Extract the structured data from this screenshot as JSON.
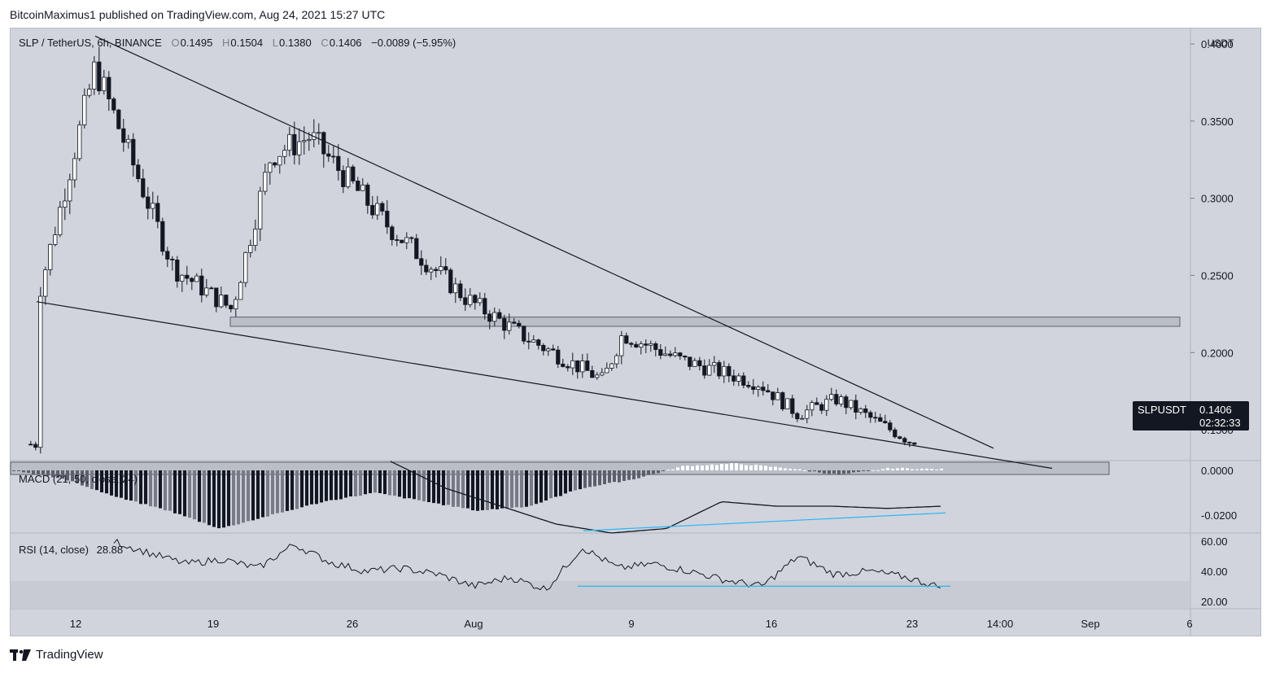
{
  "header": {
    "publisher_line": "BitcoinMaximus1 published on TradingView.com, Aug 24, 2021 15:27 UTC"
  },
  "footer": {
    "brand": "TradingView"
  },
  "legend": {
    "symbol": "SLP / TetherUS, 6h, BINANCE",
    "o_label": "O",
    "o_value": "0.1495",
    "h_label": "H",
    "h_value": "0.1504",
    "l_label": "L",
    "l_value": "0.1380",
    "c_label": "C",
    "c_value": "0.1406",
    "change": "−0.0089 (−5.95%)"
  },
  "price_tag": {
    "symbol": "SLPUSDT",
    "price": "0.1406",
    "countdown": "02:32:33"
  },
  "macd_label": "MACD (21, 50, close, 24)",
  "rsi_label": "RSI (14, close)",
  "rsi_value": "28.88",
  "colors": {
    "panel_bg": "#d1d4dc",
    "candle": "#131722",
    "trendline_blue": "#29b6f6"
  },
  "chart_data": [
    {
      "type": "candlestick",
      "title": "SLP / TetherUS, 6h, BINANCE",
      "currency_label": "USDT",
      "y_ticks": [
        "0.4000",
        "0.3500",
        "0.3000",
        "0.2500",
        "0.2000",
        "0.1500"
      ],
      "ylim": [
        0.13,
        0.41
      ],
      "x_ticks": [
        "12",
        "19",
        "26",
        "Aug",
        "9",
        "16",
        "23",
        "14:00",
        "Sep",
        "6"
      ],
      "last_price": 0.1406,
      "key_points": [
        {
          "t": "Jul 10",
          "close": 0.232
        },
        {
          "t": "Jul 13",
          "close": 0.385
        },
        {
          "t": "Jul 17",
          "close": 0.255
        },
        {
          "t": "Jul 20",
          "close": 0.228
        },
        {
          "t": "Jul 22",
          "close": 0.328
        },
        {
          "t": "Jul 24",
          "close": 0.34
        },
        {
          "t": "Jul 28",
          "close": 0.282
        },
        {
          "t": "Aug 1",
          "close": 0.235
        },
        {
          "t": "Aug 4",
          "close": 0.21
        },
        {
          "t": "Aug 8",
          "close": 0.182
        },
        {
          "t": "Aug 9",
          "close": 0.212
        },
        {
          "t": "Aug 12",
          "close": 0.195
        },
        {
          "t": "Aug 16",
          "close": 0.18
        },
        {
          "t": "Aug 18",
          "close": 0.16
        },
        {
          "t": "Aug 20",
          "close": 0.17
        },
        {
          "t": "Aug 24",
          "close": 0.1406
        }
      ],
      "annotations": {
        "resistance_line": [
          {
            "t": "Jul 13",
            "price": 0.405
          },
          {
            "t": "Aug 28",
            "price": 0.138
          }
        ],
        "support_line": [
          {
            "t": "Jul 10",
            "price": 0.233
          },
          {
            "t": "Aug 31",
            "price": 0.125
          }
        ],
        "resistance_zone": [
          0.217,
          0.223
        ],
        "support_zone": [
          0.121,
          0.129
        ]
      }
    },
    {
      "type": "bar",
      "title": "MACD (21, 50, close, 24)",
      "y_ticks": [
        "0.0000",
        "-0.0200"
      ],
      "ylim": [
        -0.028,
        0.004
      ],
      "histogram_profile": [
        0,
        -0.004,
        -0.012,
        -0.018,
        -0.026,
        -0.02,
        -0.014,
        -0.01,
        -0.014,
        -0.018,
        -0.016,
        -0.008,
        -0.004,
        0.002,
        0.003,
        0.001,
        -0.002,
        0.001,
        0.0005
      ],
      "macd_line_profile": [
        0.004,
        -0.008,
        -0.016,
        -0.024,
        -0.028,
        -0.026,
        -0.014,
        -0.016,
        -0.016,
        -0.017,
        -0.016
      ],
      "divergence_line": [
        {
          "t": "Aug 7",
          "value": -0.027
        },
        {
          "t": "Aug 24",
          "value": -0.019
        }
      ]
    },
    {
      "type": "line",
      "title": "RSI (14, close)",
      "last_value": 28.88,
      "y_ticks": [
        "60.00",
        "40.00",
        "20.00"
      ],
      "ylim": [
        15,
        65
      ],
      "values_profile": [
        60,
        52,
        45,
        48,
        42,
        58,
        46,
        40,
        42,
        38,
        30,
        36,
        28,
        56,
        42,
        45,
        40,
        34,
        30,
        50,
        38,
        40,
        36,
        29
      ],
      "divergence_line": [
        {
          "t": "Aug 7",
          "value": 30
        },
        {
          "t": "Aug 24",
          "value": 30
        }
      ]
    }
  ]
}
